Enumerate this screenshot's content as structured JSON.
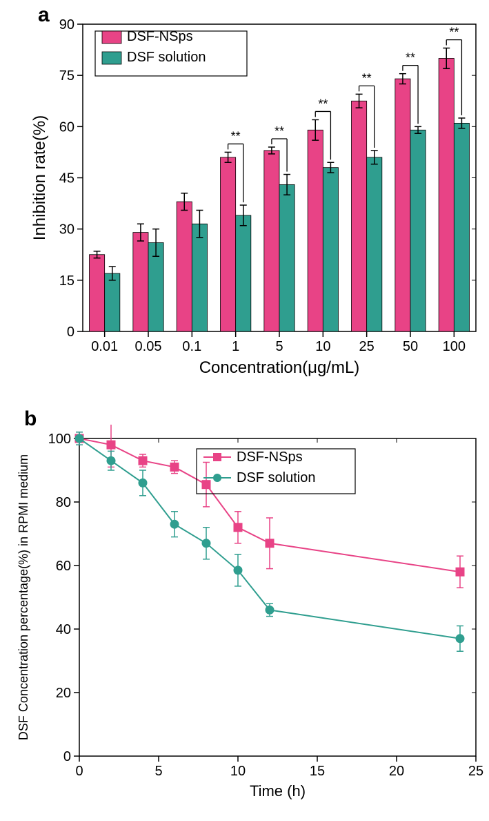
{
  "panelA": {
    "label": "a",
    "label_fontsize": 30,
    "type": "bar",
    "xlabel": "Concentration(μg/mL)",
    "ylabel": "Inhibition rate(%)",
    "label_fontsize_axis": 24,
    "tick_fontsize": 20,
    "ylim": [
      0,
      90
    ],
    "ytick_step": 15,
    "categories": [
      "0.01",
      "0.05",
      "0.1",
      "1",
      "5",
      "10",
      "25",
      "50",
      "100"
    ],
    "series": [
      {
        "name": "DSF-NSps",
        "color": "#e84386",
        "values": [
          22.5,
          29,
          38,
          51,
          53,
          59,
          67.5,
          74,
          80
        ],
        "err": [
          1,
          2.5,
          2.5,
          1.5,
          1,
          3,
          2,
          1.5,
          3
        ]
      },
      {
        "name": "DSF solution",
        "color": "#2f9e8f",
        "values": [
          17,
          26,
          31.5,
          34,
          43,
          48,
          51,
          59,
          61
        ],
        "err": [
          2,
          4,
          4,
          3,
          3,
          1.5,
          2,
          1,
          1.5
        ]
      }
    ],
    "sig": [
      false,
      false,
      false,
      true,
      true,
      true,
      true,
      true,
      true
    ],
    "sig_label": "**",
    "legend_box_stroke": "#000000",
    "bar_width_norm": 0.35,
    "axis_color": "#000000"
  },
  "panelB": {
    "label": "b",
    "label_fontsize": 30,
    "type": "line",
    "xlabel": "Time (h)",
    "ylabel": "DSF Concentration percentage(%) in RPMI medium",
    "label_fontsize_axis": 22,
    "tick_fontsize": 20,
    "xlim": [
      0,
      25
    ],
    "xtick_step": 5,
    "ylim": [
      0,
      100
    ],
    "ytick_step": 20,
    "axis_color": "#000000",
    "series": [
      {
        "name": "DSF-NSps",
        "color": "#e84386",
        "marker": "square",
        "x": [
          0,
          2,
          4,
          6,
          8,
          10,
          12,
          24
        ],
        "y": [
          100,
          98,
          93,
          91,
          85.5,
          72,
          67,
          58
        ],
        "err": [
          2,
          7,
          2,
          2,
          7,
          5,
          8,
          5
        ]
      },
      {
        "name": "DSF solution",
        "color": "#2f9e8f",
        "marker": "circle",
        "x": [
          0,
          2,
          4,
          6,
          8,
          10,
          12,
          24
        ],
        "y": [
          100,
          93,
          86,
          73,
          67,
          58.5,
          46,
          37
        ],
        "err": [
          2,
          3,
          4,
          4,
          5,
          5,
          2,
          4
        ]
      }
    ]
  },
  "colors": {
    "text": "#000000"
  }
}
